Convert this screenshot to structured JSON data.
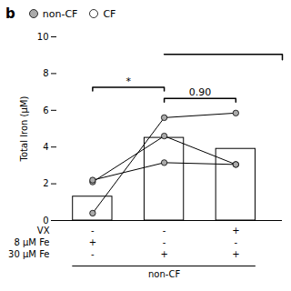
{
  "chart_data": {
    "type": "bar",
    "title": "b",
    "ylabel": "Total Iron (μM)",
    "categories": [
      null,
      null,
      null
    ],
    "values": [
      1.3,
      4.5,
      3.9
    ],
    "color": "#ffffff",
    "ylim": [
      0,
      10
    ],
    "yticks": [
      0,
      2,
      4,
      6,
      8,
      10
    ],
    "subjects": {
      "color": "#aaaaaa",
      "marker": "circle",
      "values": [
        [
          0.4,
          5.6,
          5.85
        ],
        [
          2.1,
          4.6,
          3.05
        ],
        [
          2.2,
          3.15,
          3.05
        ]
      ]
    },
    "brackets": [
      {
        "from": 0,
        "to": 1,
        "label": "*"
      },
      {
        "from": 1,
        "to": 2,
        "label": "0.90"
      }
    ],
    "open_bracket": {
      "from": 1
    },
    "condition_rows": [
      {
        "label": "VX",
        "signs": [
          "-",
          "-",
          "+"
        ]
      },
      {
        "label": "8 μM Fe",
        "signs": [
          "+",
          "-",
          "-"
        ]
      },
      {
        "label": "30 μM Fe",
        "signs": [
          "-",
          "+",
          "+"
        ]
      }
    ],
    "group_label": "non-CF",
    "legend_entries": [
      {
        "label": "non-CF",
        "color": "#aaaaaa"
      },
      {
        "label": "CF",
        "color": "#ffffff"
      }
    ],
    "legend": "upper left"
  }
}
